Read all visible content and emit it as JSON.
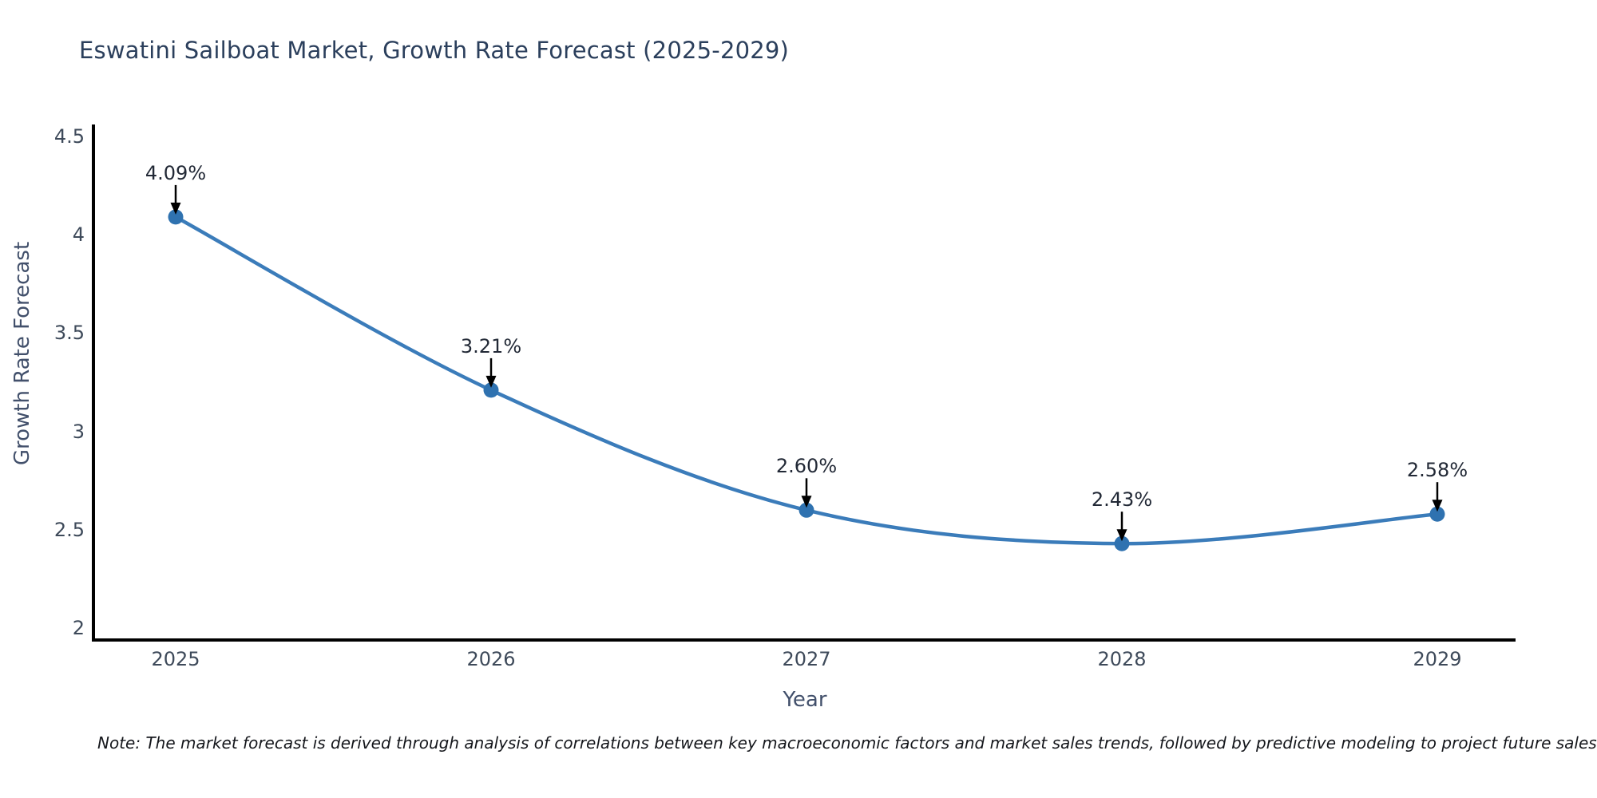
{
  "title": "Eswatini Sailboat Market, Growth Rate Forecast (2025-2029)",
  "note": "Note: The market forecast is derived through analysis of correlations between key macroeconomic factors and market sales trends, followed by predictive modeling to project future sales",
  "chart_data": {
    "type": "line",
    "title": "Eswatini Sailboat Market, Growth Rate Forecast (2025-2029)",
    "x": [
      2025,
      2026,
      2027,
      2028,
      2029
    ],
    "xtick_labels": [
      "2025",
      "2026",
      "2027",
      "2028",
      "2029"
    ],
    "values": [
      4.09,
      3.21,
      2.6,
      2.43,
      2.58
    ],
    "point_labels": [
      "4.09%",
      "3.21%",
      "2.60%",
      "2.43%",
      "2.58%"
    ],
    "xlabel": "Year",
    "ylabel": "Growth Rate Forecast",
    "yticks": [
      2,
      2.5,
      3,
      3.5,
      4,
      4.5
    ],
    "ytick_labels": [
      "2",
      "2.5",
      "3",
      "3.5",
      "4",
      "4.5"
    ],
    "ylim": [
      1.94,
      4.56
    ],
    "grid": false,
    "legend": "none",
    "smooth": true,
    "line_color": "#3b7cba",
    "marker_color": "#2f72b0",
    "annotation_arrow_color": "#000000",
    "axis_color": "#000000"
  }
}
